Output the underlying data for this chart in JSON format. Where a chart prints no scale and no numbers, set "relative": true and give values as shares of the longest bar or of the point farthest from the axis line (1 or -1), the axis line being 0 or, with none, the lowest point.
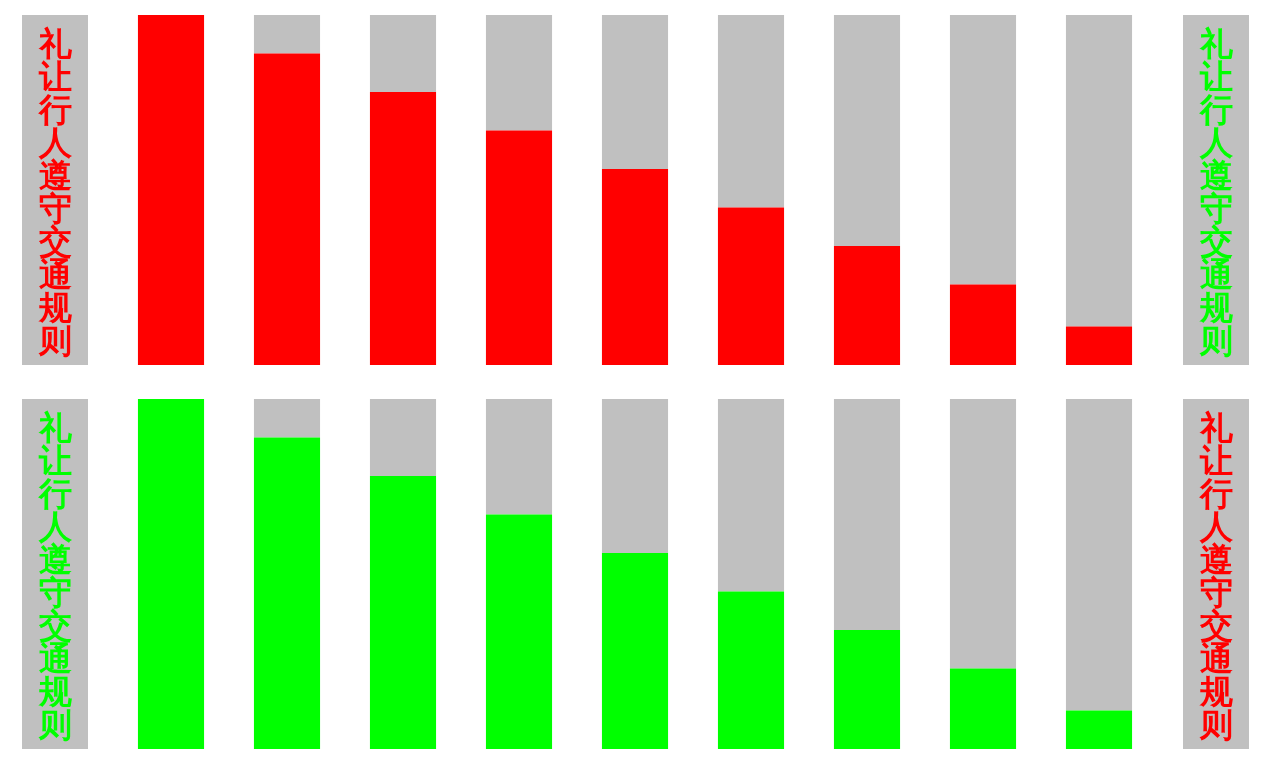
{
  "chart_data": [
    {
      "type": "bar",
      "relative": true,
      "categories": [
        null,
        null,
        null,
        null,
        null,
        null,
        null,
        null,
        null
      ],
      "series": [
        {
          "color": "#ff0000",
          "values": [
            1,
            0.89,
            0.78,
            0.67,
            0.56,
            0.45,
            0.34,
            0.23,
            0.11
          ]
        }
      ],
      "annotations": [
        "礼让行人遵守交通规则",
        "礼让行人遵守交通规则"
      ]
    },
    {
      "type": "bar",
      "relative": true,
      "categories": [
        null,
        null,
        null,
        null,
        null,
        null,
        null,
        null,
        null
      ],
      "series": [
        {
          "color": "#00ff00",
          "values": [
            1,
            0.89,
            0.78,
            0.67,
            0.56,
            0.45,
            0.34,
            0.23,
            0.11
          ]
        }
      ],
      "annotations": [
        "礼让行人遵守交通规则",
        "礼让行人遵守交通规则"
      ]
    }
  ]
}
